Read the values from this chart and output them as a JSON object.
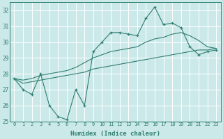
{
  "xlabel": "Humidex (Indice chaleur)",
  "bg_color": "#cce9e9",
  "grid_color": "#aad4d4",
  "line_color": "#2d7d70",
  "ylim": [
    25,
    32.5
  ],
  "xlim": [
    -0.5,
    23.5
  ],
  "yticks": [
    25,
    26,
    27,
    28,
    29,
    30,
    31,
    32
  ],
  "xticks": [
    0,
    1,
    2,
    3,
    4,
    5,
    6,
    7,
    8,
    9,
    10,
    11,
    12,
    13,
    14,
    15,
    16,
    17,
    18,
    19,
    20,
    21,
    22,
    23
  ],
  "series_main": [
    27.7,
    27.0,
    26.7,
    28.0,
    26.0,
    25.3,
    25.1,
    27.0,
    26.0,
    29.4,
    30.0,
    30.6,
    30.6,
    30.5,
    30.4,
    31.5,
    32.2,
    31.1,
    31.2,
    30.9,
    29.7,
    29.2,
    29.4,
    29.5
  ],
  "series_line2": [
    27.7,
    27.4,
    27.5,
    27.6,
    27.7,
    27.8,
    27.9,
    28.0,
    28.1,
    28.3,
    28.4,
    28.5,
    28.6,
    28.7,
    28.8,
    28.9,
    29.0,
    29.1,
    29.2,
    29.3,
    29.4,
    29.5,
    29.5,
    29.6
  ],
  "series_line3": [
    27.7,
    27.6,
    27.7,
    27.9,
    28.0,
    28.1,
    28.2,
    28.4,
    28.7,
    29.0,
    29.2,
    29.4,
    29.5,
    29.6,
    29.7,
    30.0,
    30.2,
    30.3,
    30.5,
    30.6,
    30.4,
    30.1,
    29.7,
    29.6
  ]
}
